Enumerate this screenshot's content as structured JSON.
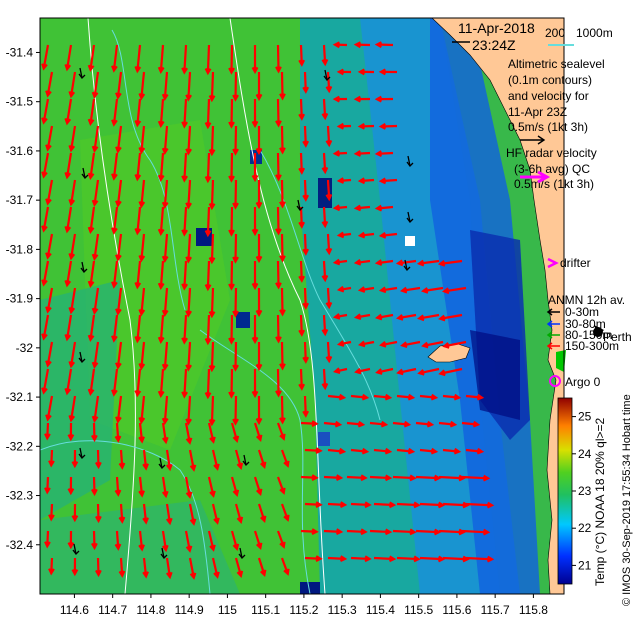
{
  "header": {
    "date": "11-Apr-2018",
    "time": "23:24Z"
  },
  "depth_legend": {
    "d1": "200",
    "d2": "1000m"
  },
  "altimetry": {
    "line1": "Altimetric sealevel",
    "line2": "(0.1m contours)",
    "line3": "and velocity for",
    "line4": "11-Apr 23Z",
    "line5": "0.5m/s (1kt 3h)"
  },
  "hf_radar": {
    "line1": "HF radar velocity",
    "line2": "(3-6h avg) QC",
    "line3": "0.5m/s (1kt 3h)"
  },
  "drifter_label": "drifter",
  "anmn": {
    "title": "ANMN 12h av.",
    "depths": [
      "0-30m",
      "30-80m",
      "80-150m",
      "150-300m"
    ],
    "depth_colors": [
      "#000000",
      "#0033ff",
      "#00aa00",
      "#ff0000"
    ]
  },
  "place_label": "Perth",
  "argo_label": "Argo 0",
  "colorbar": {
    "title": "Temp (°C) NOAA 18 20% ql>=2",
    "ticks": [
      "21",
      "22",
      "23",
      "24",
      "25"
    ],
    "range": [
      20.5,
      25.5
    ]
  },
  "credit": "© IMOS 30-Sep-2019 17:55:34 Hobart time",
  "axes": {
    "x_ticks": [
      "114.6",
      "114.7",
      "114.8",
      "114.9",
      "115",
      "115.1",
      "115.2",
      "115.3",
      "115.4",
      "115.5",
      "115.6",
      "115.7",
      "115.8"
    ],
    "y_ticks": [
      "-31.4",
      "-31.5",
      "-31.6",
      "-31.7",
      "-31.8",
      "-31.9",
      "-32",
      "-32.1",
      "-32.2",
      "-32.3",
      "-32.4"
    ],
    "x_range": [
      114.51,
      115.88
    ],
    "y_range": [
      -32.5,
      -31.33
    ]
  },
  "colors": {
    "land": "#ffc896",
    "hf_vector": "#ff0000",
    "alt_vector": "#000000",
    "drifter": "#ff00ff",
    "contour": "#66dddd",
    "depth_200": "#ffffff",
    "argo": "#ff00ff"
  }
}
